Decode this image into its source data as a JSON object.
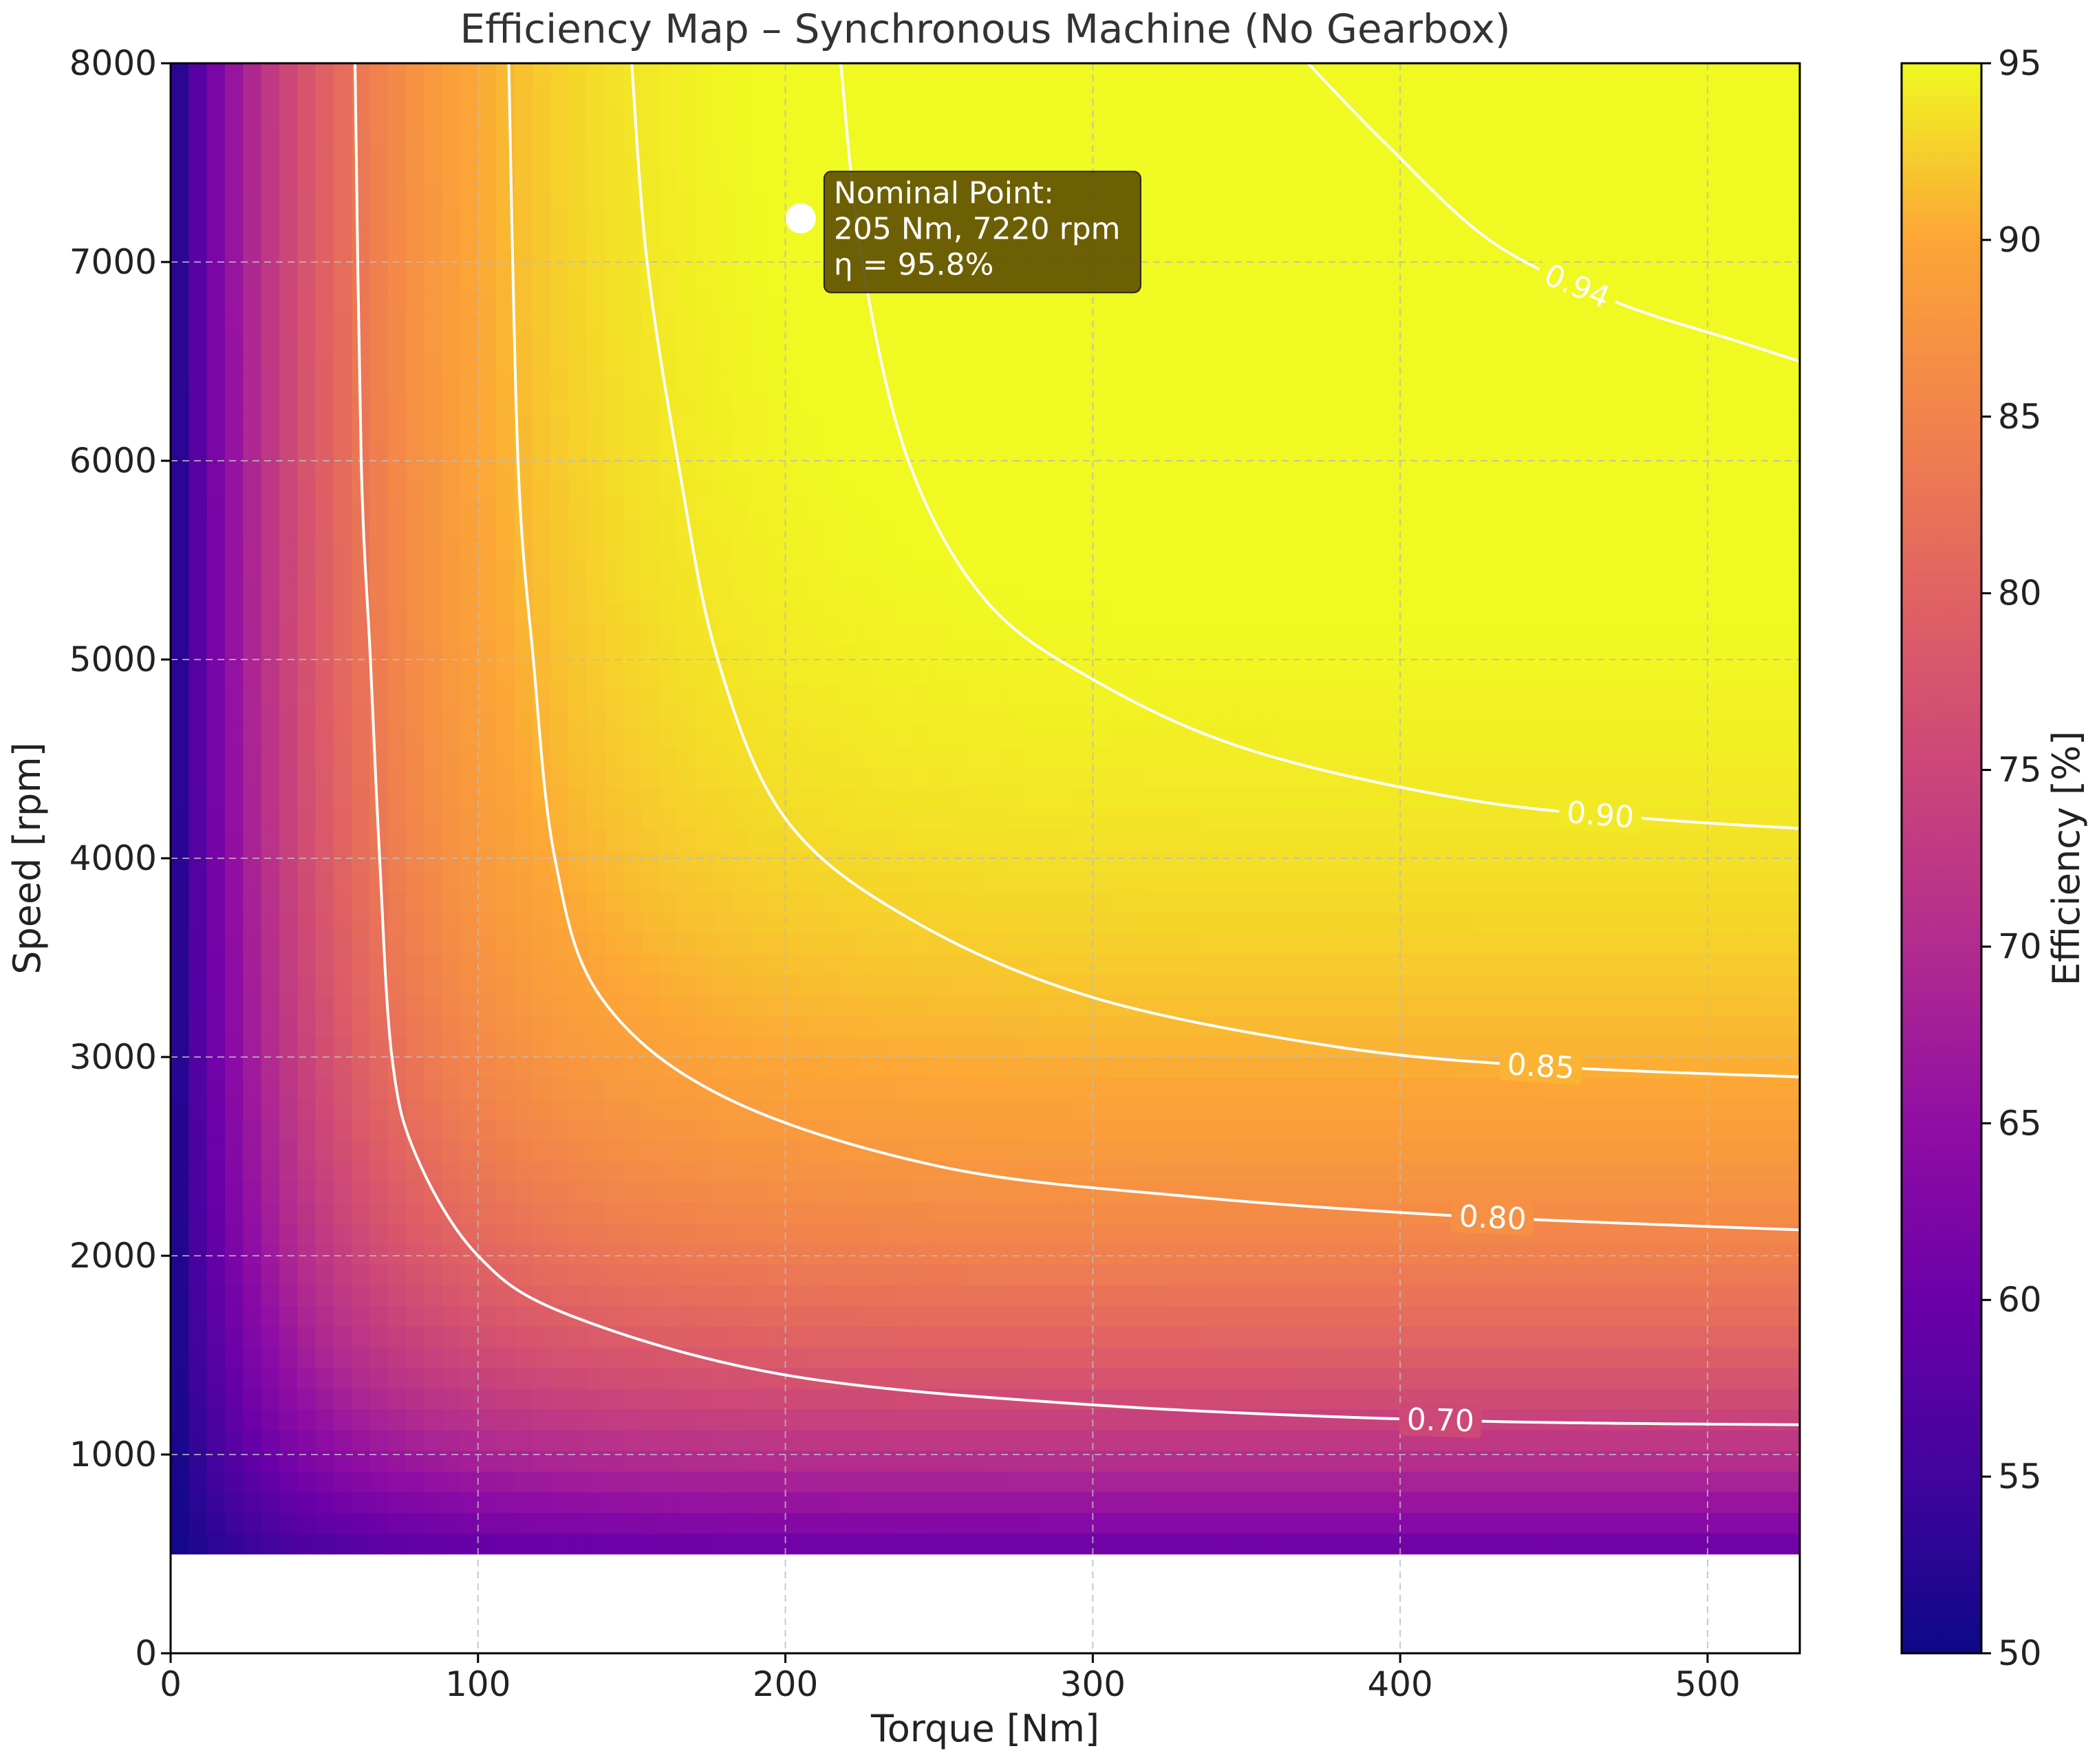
{
  "chart_data": {
    "type": "heatmap",
    "title": "Efficiency Map – Synchronous Machine (No Gearbox)",
    "xlabel": "Torque [Nm]",
    "ylabel": "Speed [rpm]",
    "xlim": [
      0,
      530
    ],
    "ylim": [
      0,
      8000
    ],
    "x_ticks": [
      0,
      100,
      200,
      300,
      400,
      500
    ],
    "y_ticks": [
      0,
      1000,
      2000,
      3000,
      4000,
      5000,
      6000,
      7000,
      8000
    ],
    "grid": true,
    "data_extent": {
      "torque": [
        0,
        530
      ],
      "speed": [
        500,
        8000
      ]
    },
    "colormap": "plasma",
    "colorbar": {
      "label": "Efficiency [%]",
      "range": [
        50,
        95
      ],
      "ticks": [
        50,
        55,
        60,
        65,
        70,
        75,
        80,
        85,
        90,
        95
      ]
    },
    "contours": [
      {
        "level": "0.70",
        "points": [
          [
            60,
            8000
          ],
          [
            62,
            6000
          ],
          [
            65,
            5000
          ],
          [
            68,
            4000
          ],
          [
            72,
            3000
          ],
          [
            80,
            2500
          ],
          [
            100,
            2000
          ],
          [
            130,
            1700
          ],
          [
            200,
            1400
          ],
          [
            300,
            1250
          ],
          [
            420,
            1170
          ],
          [
            530,
            1150
          ]
        ]
      },
      {
        "level": "0.80",
        "points": [
          [
            110,
            8000
          ],
          [
            113,
            6000
          ],
          [
            118,
            5000
          ],
          [
            125,
            4000
          ],
          [
            140,
            3300
          ],
          [
            180,
            2800
          ],
          [
            250,
            2450
          ],
          [
            330,
            2300
          ],
          [
            420,
            2200
          ],
          [
            530,
            2130
          ]
        ]
      },
      {
        "level": "0.85",
        "points": [
          [
            150,
            8000
          ],
          [
            155,
            7000
          ],
          [
            165,
            6000
          ],
          [
            178,
            5000
          ],
          [
            200,
            4200
          ],
          [
            240,
            3700
          ],
          [
            300,
            3300
          ],
          [
            380,
            3050
          ],
          [
            450,
            2950
          ],
          [
            530,
            2900
          ]
        ]
      },
      {
        "level": "0.90",
        "points": [
          [
            218,
            8000
          ],
          [
            225,
            7000
          ],
          [
            240,
            6000
          ],
          [
            265,
            5300
          ],
          [
            300,
            4900
          ],
          [
            350,
            4550
          ],
          [
            420,
            4300
          ],
          [
            480,
            4200
          ],
          [
            530,
            4150
          ]
        ]
      },
      {
        "level": "0.94",
        "points": [
          [
            370,
            8000
          ],
          [
            395,
            7600
          ],
          [
            430,
            7100
          ],
          [
            470,
            6800
          ],
          [
            510,
            6600
          ],
          [
            530,
            6500
          ]
        ]
      }
    ],
    "annotation": {
      "label": "Nominal Point:\n205 Nm, 7220 rpm\nη = 95.8%",
      "lines": [
        "Nominal Point:",
        "205 Nm, 7220 rpm",
        "η = 95.8%"
      ],
      "point": {
        "torque": 205,
        "speed": 7220
      },
      "efficiency_percent": 95.8
    }
  }
}
